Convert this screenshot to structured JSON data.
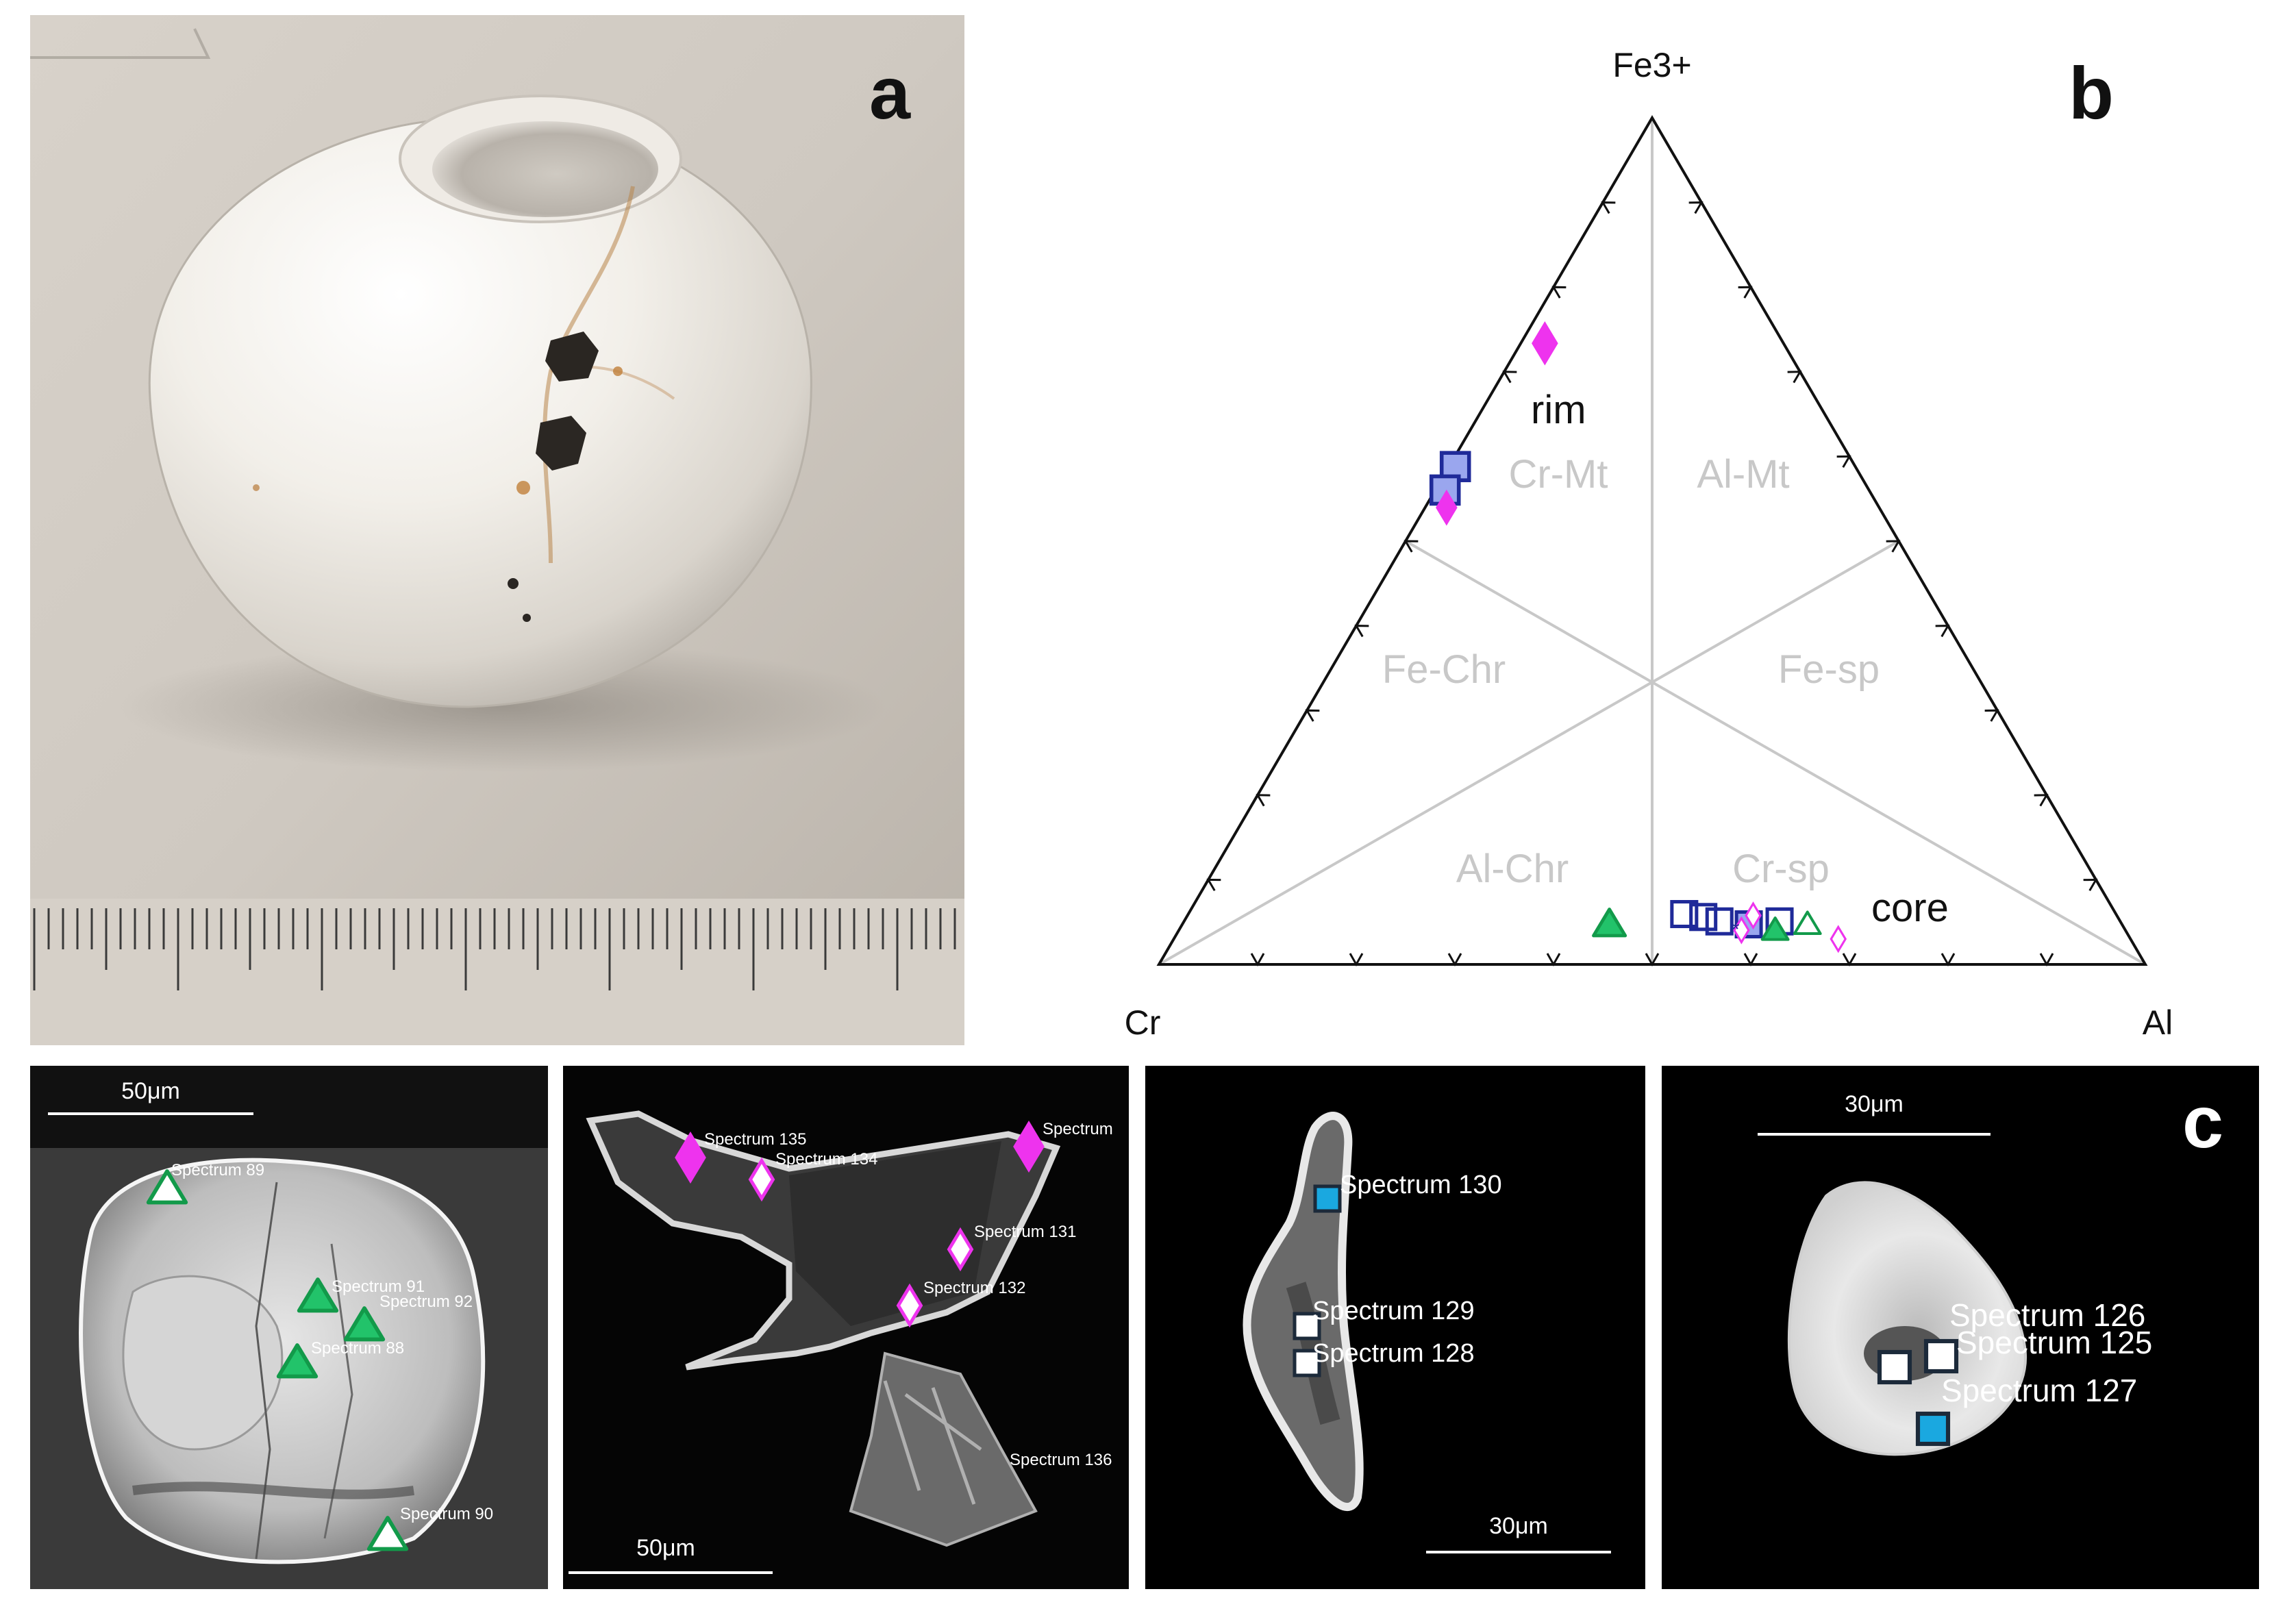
{
  "panel_a": {
    "letter": "a"
  },
  "panel_b": {
    "letter": "b",
    "apex_top": "Fe3+",
    "apex_left": "Cr",
    "apex_right": "Al",
    "fields": [
      "Cr-Mt",
      "Al-Mt",
      "Fe-Chr",
      "Fe-sp",
      "Al-Chr",
      "Cr-sp"
    ],
    "annotations": [
      "rim",
      "core"
    ]
  },
  "panel_c": {
    "letter": "c",
    "images": [
      {
        "scale_bar": "50μm",
        "markers": [
          {
            "label": "Spectrum 89",
            "symbol": "triangle-open-green"
          },
          {
            "label": "Spectrum 91",
            "symbol": "triangle-filled-green"
          },
          {
            "label": "Spectrum 92",
            "symbol": "triangle-filled-green"
          },
          {
            "label": "Spectrum 88",
            "symbol": "triangle-filled-green"
          },
          {
            "label": "Spectrum 90",
            "symbol": "triangle-open-green"
          }
        ]
      },
      {
        "scale_bar": "50μm",
        "markers": [
          {
            "label": "Spectrum 135",
            "symbol": "diamond-filled-magenta"
          },
          {
            "label": "Spectrum 134",
            "symbol": "diamond-open-magenta"
          },
          {
            "label": "Spectrum",
            "symbol": "diamond-filled-magenta"
          },
          {
            "label": "Spectrum 131",
            "symbol": "diamond-open-magenta"
          },
          {
            "label": "Spectrum 132",
            "symbol": "diamond-open-magenta"
          },
          {
            "label": "Spectrum 136",
            "symbol": "none"
          }
        ]
      },
      {
        "scale_bar": "30μm",
        "markers": [
          {
            "label": "Spectrum 130",
            "symbol": "square-filled-blue"
          },
          {
            "label": "Spectrum 129",
            "symbol": "square-open"
          },
          {
            "label": "Spectrum 128",
            "symbol": "square-open"
          }
        ]
      },
      {
        "scale_bar": "30μm",
        "markers": [
          {
            "label": "Spectrum 126",
            "symbol": "square-open"
          },
          {
            "label": "Spectrum 125",
            "symbol": "square-open"
          },
          {
            "label": "Spectrum 127",
            "symbol": "square-filled-blue"
          }
        ]
      }
    ]
  },
  "colors": {
    "green": "#22c36a",
    "green_dark": "#129a4a",
    "magenta": "#ee33ee",
    "navy": "#1f2a99",
    "periwinkle": "#9aa6ee",
    "cyan": "#1aa8e0",
    "field_label_grey": "#c8c8c8"
  }
}
